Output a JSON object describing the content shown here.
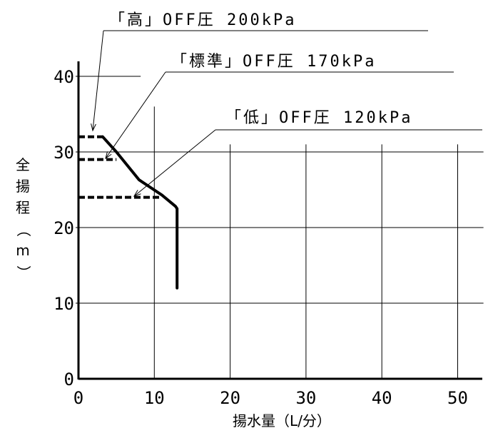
{
  "chart_data": {
    "type": "line",
    "title": "",
    "xlabel": "揚水量（L/分）",
    "ylabel": "全揚程（m）",
    "xlim": [
      0,
      53
    ],
    "ylim": [
      0,
      42
    ],
    "xticks": [
      "0",
      "10",
      "20",
      "30",
      "40",
      "50"
    ],
    "yticks": [
      "0",
      "10",
      "20",
      "30",
      "40"
    ],
    "grid": true,
    "curve": {
      "x": [
        3.2,
        5,
        8,
        11,
        12.8,
        13,
        13
      ],
      "y": [
        32,
        30,
        26.3,
        24.3,
        22.8,
        22.5,
        12
      ]
    },
    "series": [
      {
        "name": "「高」OFF圧 200kPa",
        "y": 32,
        "x": [
          0,
          3.2
        ]
      },
      {
        "name": "「標準」OFF圧 170kPa",
        "y": 29,
        "x": [
          0,
          5
        ]
      },
      {
        "name": "「低」OFF圧 120kPa",
        "y": 24,
        "x": [
          0,
          11
        ]
      }
    ]
  }
}
